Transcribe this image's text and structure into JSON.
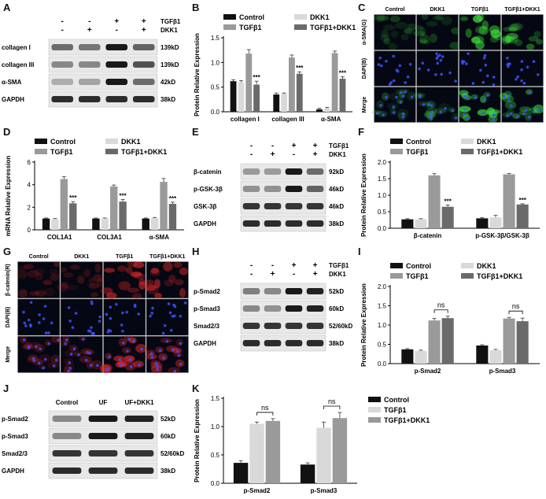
{
  "panels": {
    "A": {
      "label": "A",
      "treat_labels": [
        "TGFβ1",
        "DKK1"
      ],
      "signs": [
        [
          "-",
          "-",
          "+",
          "+"
        ],
        [
          "-",
          "+",
          "-",
          "+"
        ]
      ],
      "rows": [
        {
          "name": "collagen I",
          "kd": "139kD",
          "bands": [
            0.55,
            0.5,
            1.0,
            0.6
          ]
        },
        {
          "name": "collagen III",
          "kd": "139kD",
          "bands": [
            0.4,
            0.4,
            1.0,
            0.7
          ]
        },
        {
          "name": "α-SMA",
          "kd": "42kD",
          "bands": [
            0.2,
            0.25,
            1.0,
            0.55
          ]
        },
        {
          "name": "GAPDH",
          "kd": "38kD",
          "bands": [
            0.9,
            0.9,
            0.9,
            0.9
          ]
        }
      ]
    },
    "C": {
      "label": "C",
      "cols": [
        "Control",
        "DKK1",
        "TGFβ1",
        "TGFβ1+DKK1"
      ],
      "rows": [
        "α-SMA(G)",
        "DAPI(B)",
        "Merge"
      ]
    },
    "E": {
      "label": "E",
      "treat_labels": [
        "TGFβ1",
        "DKK1"
      ],
      "signs": [
        [
          "-",
          "-",
          "+",
          "+"
        ],
        [
          "-",
          "+",
          "-",
          "+"
        ]
      ],
      "rows": [
        {
          "name": "β-catenin",
          "kd": "92kD",
          "bands": [
            0.3,
            0.3,
            1.0,
            0.55
          ]
        },
        {
          "name": "p-GSK-3β",
          "kd": "46kD",
          "bands": [
            0.35,
            0.35,
            1.0,
            0.6
          ]
        },
        {
          "name": "GSK-3β",
          "kd": "46kD",
          "bands": [
            0.85,
            0.85,
            0.85,
            0.85
          ]
        },
        {
          "name": "GAPDH",
          "kd": "38kD",
          "bands": [
            0.9,
            0.9,
            0.9,
            0.9
          ]
        }
      ]
    },
    "G": {
      "label": "G",
      "cols": [
        "Control",
        "DKK1",
        "TGFβ1",
        "TGFβ1+DKK1"
      ],
      "rows": [
        "β-catenin(R)",
        "DAPI(B)",
        "Merge"
      ]
    },
    "H": {
      "label": "H",
      "treat_labels": [
        "TGFβ1",
        "DKK1"
      ],
      "signs": [
        [
          "-",
          "-",
          "+",
          "+"
        ],
        [
          "-",
          "+",
          "-",
          "+"
        ]
      ],
      "rows": [
        {
          "name": "p-Smad2",
          "kd": "52kD",
          "bands": [
            0.45,
            0.4,
            1.0,
            0.95
          ]
        },
        {
          "name": "p-Smad3",
          "kd": "60kD",
          "bands": [
            0.4,
            0.35,
            1.0,
            0.95
          ]
        },
        {
          "name": "Smad2/3",
          "kd": "52/60kD",
          "bands": [
            0.85,
            0.85,
            0.85,
            0.85
          ]
        },
        {
          "name": "GAPDH",
          "kd": "38kD",
          "bands": [
            0.9,
            0.9,
            0.9,
            0.9
          ]
        }
      ]
    },
    "J": {
      "label": "J",
      "cols": [
        "Control",
        "UF",
        "UF+DKK1"
      ],
      "rows": [
        {
          "name": "p-Smad2",
          "kd": "52kD",
          "bands": [
            0.4,
            1.0,
            0.95
          ]
        },
        {
          "name": "p-Smad3",
          "kd": "60kD",
          "bands": [
            0.4,
            1.0,
            0.95
          ]
        },
        {
          "name": "Smad2/3",
          "kd": "52/60kD",
          "bands": [
            0.85,
            0.85,
            0.85
          ]
        },
        {
          "name": "GAPDH",
          "kd": "38kD",
          "bands": [
            0.9,
            0.9,
            0.9
          ]
        }
      ]
    }
  },
  "chart_data": [
    {
      "id": "B",
      "label": "B",
      "type": "bar",
      "ylabel": "Protein Relative Expression",
      "ylim": [
        0,
        1.5
      ],
      "yticks": [
        0.0,
        0.5,
        1.0,
        1.5
      ],
      "categories": [
        "collagen I",
        "collagen III",
        "α-SMA"
      ],
      "series": [
        {
          "name": "Control",
          "color": "#111111",
          "values": [
            0.62,
            0.35,
            0.05
          ],
          "err": [
            0.03,
            0.03,
            0.02
          ]
        },
        {
          "name": "DKK1",
          "color": "#d9d9d9",
          "values": [
            0.6,
            0.36,
            0.07
          ],
          "err": [
            0.03,
            0.02,
            0.02
          ]
        },
        {
          "name": "TGFβ1",
          "color": "#9a9a9a",
          "values": [
            1.18,
            1.1,
            1.19
          ],
          "err": [
            0.08,
            0.05,
            0.04
          ]
        },
        {
          "name": "TGFβ1+DKK1",
          "color": "#6a6a6a",
          "values": [
            0.55,
            0.77,
            0.67
          ],
          "err": [
            0.07,
            0.04,
            0.04
          ]
        }
      ],
      "stars": [
        "***",
        "***",
        "***"
      ]
    },
    {
      "id": "D",
      "label": "D",
      "type": "bar",
      "ylabel": "mRNA Relative Expression",
      "ylim": [
        0,
        6
      ],
      "yticks": [
        0,
        2,
        4,
        6
      ],
      "categories": [
        "COL1A1",
        "COL3A1",
        "α-SMA"
      ],
      "series": [
        {
          "name": "Control",
          "color": "#111111",
          "values": [
            1.0,
            1.0,
            1.0
          ],
          "err": [
            0.05,
            0.05,
            0.05
          ]
        },
        {
          "name": "DKK1",
          "color": "#d9d9d9",
          "values": [
            0.95,
            1.0,
            1.05
          ],
          "err": [
            0.05,
            0.05,
            0.05
          ]
        },
        {
          "name": "TGFβ1",
          "color": "#9a9a9a",
          "values": [
            4.5,
            3.85,
            4.25
          ],
          "err": [
            0.2,
            0.12,
            0.3
          ]
        },
        {
          "name": "TGFβ1+DKK1",
          "color": "#6a6a6a",
          "values": [
            2.35,
            2.5,
            2.3
          ],
          "err": [
            0.15,
            0.2,
            0.15
          ]
        }
      ],
      "stars": [
        "***",
        "***",
        "***"
      ]
    },
    {
      "id": "F",
      "label": "F",
      "type": "bar",
      "ylabel": "Protein Relative Expression",
      "ylim": [
        0,
        2.0
      ],
      "yticks": [
        0.0,
        0.5,
        1.0,
        1.5,
        2.0
      ],
      "categories": [
        "β-catenin",
        "p-GSK-3β/GSK-3β"
      ],
      "series": [
        {
          "name": "Control",
          "color": "#111111",
          "values": [
            0.27,
            0.3
          ],
          "err": [
            0.02,
            0.02
          ]
        },
        {
          "name": "DKK1",
          "color": "#d9d9d9",
          "values": [
            0.27,
            0.33
          ],
          "err": [
            0.02,
            0.06
          ]
        },
        {
          "name": "TGFβ1",
          "color": "#9a9a9a",
          "values": [
            1.6,
            1.63
          ],
          "err": [
            0.05,
            0.03
          ]
        },
        {
          "name": "TGFβ1+DKK1",
          "color": "#6a6a6a",
          "values": [
            0.65,
            0.72
          ],
          "err": [
            0.05,
            0.02
          ]
        }
      ],
      "stars": [
        "***",
        "***"
      ]
    },
    {
      "id": "I",
      "label": "I",
      "type": "bar",
      "ylabel": "Protein Relative Expression",
      "ylim": [
        0,
        2.0
      ],
      "yticks": [
        0.0,
        0.5,
        1.0,
        1.5,
        2.0
      ],
      "categories": [
        "p-Smad2",
        "p-Smad3"
      ],
      "series": [
        {
          "name": "Control",
          "color": "#111111",
          "values": [
            0.37,
            0.47
          ],
          "err": [
            0.02,
            0.02
          ]
        },
        {
          "name": "DKK1",
          "color": "#d9d9d9",
          "values": [
            0.33,
            0.35
          ],
          "err": [
            0.02,
            0.02
          ]
        },
        {
          "name": "TGFβ1",
          "color": "#9a9a9a",
          "values": [
            1.12,
            1.17
          ],
          "err": [
            0.05,
            0.03
          ]
        },
        {
          "name": "TGFβ1+DKK1",
          "color": "#6a6a6a",
          "values": [
            1.18,
            1.1
          ],
          "err": [
            0.05,
            0.08
          ]
        }
      ],
      "sig": [
        {
          "label": "ns",
          "series": [
            2,
            3
          ]
        },
        {
          "label": "ns",
          "series": [
            2,
            3
          ]
        }
      ]
    },
    {
      "id": "K",
      "label": "K",
      "type": "bar",
      "ylabel": "Protein Relative Expression",
      "ylim": [
        0,
        1.5
      ],
      "yticks": [
        0.0,
        0.5,
        1.0,
        1.5
      ],
      "categories": [
        "p-Smad2",
        "p-Smad3"
      ],
      "series": [
        {
          "name": "Control",
          "color": "#111111",
          "values": [
            0.36,
            0.33
          ],
          "err": [
            0.04,
            0.03
          ]
        },
        {
          "name": "TGFβ1",
          "color": "#d9d9d9",
          "values": [
            1.05,
            0.98
          ],
          "err": [
            0.03,
            0.1
          ]
        },
        {
          "name": "TGFβ1+DKK1",
          "color": "#9a9a9a",
          "values": [
            1.1,
            1.15
          ],
          "err": [
            0.04,
            0.1
          ]
        }
      ],
      "sig": [
        {
          "label": "ns",
          "series": [
            1,
            2
          ]
        },
        {
          "label": "ns",
          "series": [
            1,
            2
          ]
        }
      ]
    }
  ]
}
